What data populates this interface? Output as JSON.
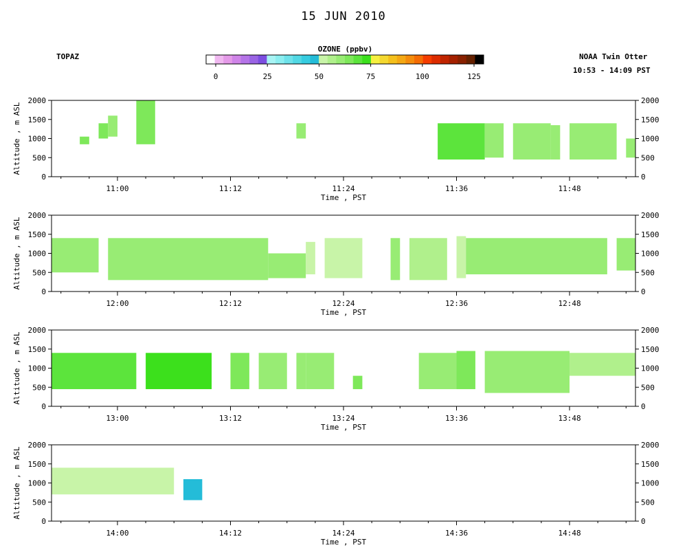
{
  "header": {
    "title": "15 JUN 2010",
    "station": "TOPAZ",
    "platform": "NOAA Twin Otter",
    "time_range": "10:53 - 14:09 PST"
  },
  "colorbar": {
    "title": "OZONE (ppbv)",
    "min": 0,
    "max": 125,
    "tick_labels": [
      "0",
      "25",
      "50",
      "75",
      "100",
      "125"
    ],
    "colors": [
      "#ffffff",
      "#f0b8f0",
      "#e49ae8",
      "#cf84e8",
      "#b574e8",
      "#9a64e4",
      "#7c4ee0",
      "#a8f4f4",
      "#8ceef0",
      "#6ee2ea",
      "#52d8e4",
      "#36cce0",
      "#24bcd8",
      "#c8f4a8",
      "#b0f08c",
      "#98ec74",
      "#7ee85a",
      "#5ce43c",
      "#3ce01c",
      "#f6f040",
      "#f4d830",
      "#f4c01c",
      "#f4a814",
      "#f48c0c",
      "#f46c04",
      "#f43c00",
      "#dc2c00",
      "#c02400",
      "#a42000",
      "#882000",
      "#642000",
      "#000000"
    ]
  },
  "chart_data": [
    {
      "type": "heatmap",
      "xlabel": "Time , PST",
      "ylabel": "Altitude , m ASL",
      "ylim": [
        0,
        2000
      ],
      "xlim": [
        "10:53",
        "11:55"
      ],
      "y_tick_labels": [
        "0",
        "500",
        "1000",
        "1500",
        "2000"
      ],
      "x_tick_labels": [
        "11:00",
        "11:12",
        "11:24",
        "11:36",
        "11:48"
      ],
      "data_blocks": [
        {
          "t_start": "10:56",
          "t_end": "10:57",
          "alt_bottom": 850,
          "alt_top": 1050,
          "ozone_ppbv": 62
        },
        {
          "t_start": "10:58",
          "t_end": "10:59",
          "alt_bottom": 1000,
          "alt_top": 1400,
          "ozone_ppbv": 62
        },
        {
          "t_start": "10:59",
          "t_end": "11:00",
          "alt_bottom": 1050,
          "alt_top": 1600,
          "ozone_ppbv": 60
        },
        {
          "t_start": "11:02",
          "t_end": "11:04",
          "alt_bottom": 850,
          "alt_top": 2000,
          "ozone_ppbv": 62
        },
        {
          "t_start": "11:19",
          "t_end": "11:20",
          "alt_bottom": 1000,
          "alt_top": 1400,
          "ozone_ppbv": 60
        },
        {
          "t_start": "11:34",
          "t_end": "11:39",
          "alt_bottom": 450,
          "alt_top": 1400,
          "ozone_ppbv": 65
        },
        {
          "t_start": "11:39",
          "t_end": "11:41",
          "alt_bottom": 500,
          "alt_top": 1400,
          "ozone_ppbv": 60
        },
        {
          "t_start": "11:42",
          "t_end": "11:46",
          "alt_bottom": 450,
          "alt_top": 1400,
          "ozone_ppbv": 58
        },
        {
          "t_start": "11:46",
          "t_end": "11:47",
          "alt_bottom": 450,
          "alt_top": 1350,
          "ozone_ppbv": 60
        },
        {
          "t_start": "11:48",
          "t_end": "11:53",
          "alt_bottom": 450,
          "alt_top": 1400,
          "ozone_ppbv": 60
        },
        {
          "t_start": "11:54",
          "t_end": "11:55",
          "alt_bottom": 500,
          "alt_top": 1000,
          "ozone_ppbv": 60
        }
      ]
    },
    {
      "type": "heatmap",
      "xlabel": "Time , PST",
      "ylabel": "Altitude , m ASL",
      "ylim": [
        0,
        2000
      ],
      "xlim": [
        "11:53",
        "12:55"
      ],
      "y_tick_labels": [
        "0",
        "500",
        "1000",
        "1500",
        "2000"
      ],
      "x_tick_labels": [
        "12:00",
        "12:12",
        "12:24",
        "12:36",
        "12:48"
      ],
      "data_blocks": [
        {
          "t_start": "11:53",
          "t_end": "11:58",
          "alt_bottom": 500,
          "alt_top": 1400,
          "ozone_ppbv": 58
        },
        {
          "t_start": "11:59",
          "t_end": "12:16",
          "alt_bottom": 300,
          "alt_top": 1400,
          "ozone_ppbv": 58
        },
        {
          "t_start": "12:16",
          "t_end": "12:20",
          "alt_bottom": 350,
          "alt_top": 1000,
          "ozone_ppbv": 58
        },
        {
          "t_start": "12:20",
          "t_end": "12:21",
          "alt_bottom": 450,
          "alt_top": 1300,
          "ozone_ppbv": 50
        },
        {
          "t_start": "12:22",
          "t_end": "12:26",
          "alt_bottom": 350,
          "alt_top": 1400,
          "ozone_ppbv": 52
        },
        {
          "t_start": "12:29",
          "t_end": "12:30",
          "alt_bottom": 300,
          "alt_top": 1400,
          "ozone_ppbv": 58
        },
        {
          "t_start": "12:31",
          "t_end": "12:35",
          "alt_bottom": 300,
          "alt_top": 1400,
          "ozone_ppbv": 55
        },
        {
          "t_start": "12:36",
          "t_end": "12:37",
          "alt_bottom": 350,
          "alt_top": 1450,
          "ozone_ppbv": 50
        },
        {
          "t_start": "12:37",
          "t_end": "12:52",
          "alt_bottom": 450,
          "alt_top": 1400,
          "ozone_ppbv": 58
        },
        {
          "t_start": "12:53",
          "t_end": "12:55",
          "alt_bottom": 550,
          "alt_top": 1400,
          "ozone_ppbv": 60
        }
      ]
    },
    {
      "type": "heatmap",
      "xlabel": "Time , PST",
      "ylabel": "Altitude , m ASL",
      "ylim": [
        0,
        2000
      ],
      "xlim": [
        "12:53",
        "13:55"
      ],
      "y_tick_labels": [
        "0",
        "500",
        "1000",
        "1500",
        "2000"
      ],
      "x_tick_labels": [
        "13:00",
        "13:12",
        "13:24",
        "13:36",
        "13:48"
      ],
      "data_blocks": [
        {
          "t_start": "12:53",
          "t_end": "13:02",
          "alt_bottom": 450,
          "alt_top": 1400,
          "ozone_ppbv": 65
        },
        {
          "t_start": "13:03",
          "t_end": "13:10",
          "alt_bottom": 450,
          "alt_top": 1400,
          "ozone_ppbv": 70
        },
        {
          "t_start": "13:12",
          "t_end": "13:14",
          "alt_bottom": 450,
          "alt_top": 1400,
          "ozone_ppbv": 62
        },
        {
          "t_start": "13:15",
          "t_end": "13:18",
          "alt_bottom": 450,
          "alt_top": 1400,
          "ozone_ppbv": 58
        },
        {
          "t_start": "13:19",
          "t_end": "13:20",
          "alt_bottom": 450,
          "alt_top": 1400,
          "ozone_ppbv": 60
        },
        {
          "t_start": "13:20",
          "t_end": "13:23",
          "alt_bottom": 450,
          "alt_top": 1400,
          "ozone_ppbv": 60
        },
        {
          "t_start": "13:25",
          "t_end": "13:26",
          "alt_bottom": 450,
          "alt_top": 800,
          "ozone_ppbv": 62
        },
        {
          "t_start": "13:32",
          "t_end": "13:36",
          "alt_bottom": 450,
          "alt_top": 1400,
          "ozone_ppbv": 60
        },
        {
          "t_start": "13:36",
          "t_end": "13:38",
          "alt_bottom": 450,
          "alt_top": 1450,
          "ozone_ppbv": 62
        },
        {
          "t_start": "13:39",
          "t_end": "13:48",
          "alt_bottom": 350,
          "alt_top": 1450,
          "ozone_ppbv": 60
        },
        {
          "t_start": "13:48",
          "t_end": "13:55",
          "alt_bottom": 800,
          "alt_top": 1400,
          "ozone_ppbv": 55
        }
      ]
    },
    {
      "type": "heatmap",
      "xlabel": "Time , PST",
      "ylabel": "Altitude , m ASL",
      "ylim": [
        0,
        2000
      ],
      "xlim": [
        "13:53",
        "14:55"
      ],
      "y_tick_labels": [
        "0",
        "500",
        "1000",
        "1500",
        "2000"
      ],
      "x_tick_labels": [
        "14:00",
        "14:12",
        "14:24",
        "14:36",
        "14:48"
      ],
      "data_blocks": [
        {
          "t_start": "13:53",
          "t_end": "14:06",
          "alt_bottom": 700,
          "alt_top": 1400,
          "ozone_ppbv": 52
        },
        {
          "t_start": "14:07",
          "t_end": "14:09",
          "alt_bottom": 550,
          "alt_top": 1100,
          "ozone_ppbv": 45
        }
      ]
    }
  ]
}
